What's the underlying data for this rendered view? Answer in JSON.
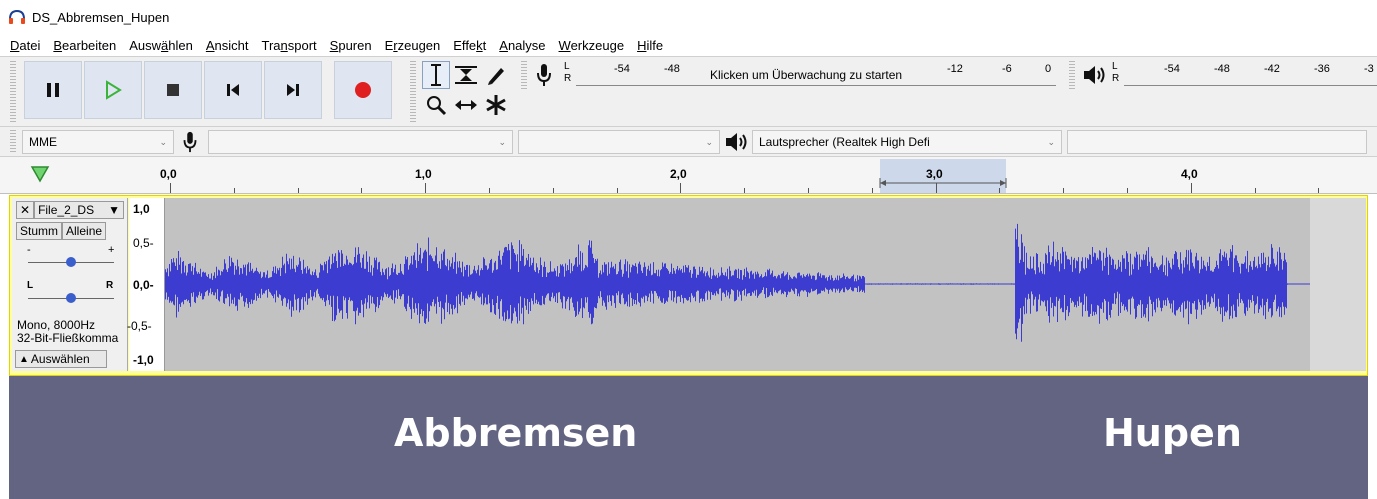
{
  "window": {
    "title": "DS_Abbremsen_Hupen"
  },
  "menu": [
    {
      "pre": "",
      "u": "D",
      "post": "atei"
    },
    {
      "pre": "",
      "u": "B",
      "post": "earbeiten"
    },
    {
      "pre": "Ausw",
      "u": "ä",
      "post": "hlen"
    },
    {
      "pre": "",
      "u": "A",
      "post": "nsicht"
    },
    {
      "pre": "Tra",
      "u": "n",
      "post": "sport"
    },
    {
      "pre": "",
      "u": "S",
      "post": "puren"
    },
    {
      "pre": "E",
      "u": "r",
      "post": "zeugen"
    },
    {
      "pre": "Effe",
      "u": "k",
      "post": "t"
    },
    {
      "pre": "",
      "u": "A",
      "post": "nalyse"
    },
    {
      "pre": "",
      "u": "W",
      "post": "erkzeuge"
    },
    {
      "pre": "",
      "u": "H",
      "post": "ilfe"
    }
  ],
  "transport": {
    "pause": "pause-icon",
    "play": "play-icon",
    "stop": "stop-icon",
    "skip_start": "skip-start-icon",
    "skip_end": "skip-end-icon",
    "record": "record-icon",
    "play_color": "#3cb43c",
    "record_color": "#e02020"
  },
  "recording_meter": {
    "channel_l": "L",
    "channel_r": "R",
    "ticks": [
      "-54",
      "-48",
      "-12",
      "-6",
      "0"
    ],
    "message": "Klicken um Überwachung zu starten"
  },
  "playback_meter": {
    "channel_l": "L",
    "channel_r": "R",
    "ticks": [
      "-54",
      "-48",
      "-42",
      "-36",
      "-3"
    ]
  },
  "devices": {
    "host": "MME",
    "recording_device": "",
    "recording_channels": "",
    "playback_device": "Lautsprecher (Realtek High Defi"
  },
  "timeline": {
    "labels": [
      "0,0",
      "1,0",
      "2,0",
      "3,0",
      "4,0"
    ],
    "selection_label": "3,0"
  },
  "track": {
    "name": "File_2_DS",
    "mute": "Stumm",
    "solo": "Alleine",
    "gain_minus": "-",
    "gain_plus": "+",
    "pan_l": "L",
    "pan_r": "R",
    "info_rate": "Mono, 8000Hz",
    "info_format": "32-Bit-Fließkomma",
    "select_label": "Auswählen",
    "scale": [
      "1,0",
      "0,5-",
      "0,0-",
      "-0,5-",
      "-1,0"
    ],
    "wave_color": "#3c3cd0"
  },
  "banner": {
    "left": "Abbremsen",
    "right": "Hupen",
    "bg_color": "#626482"
  }
}
